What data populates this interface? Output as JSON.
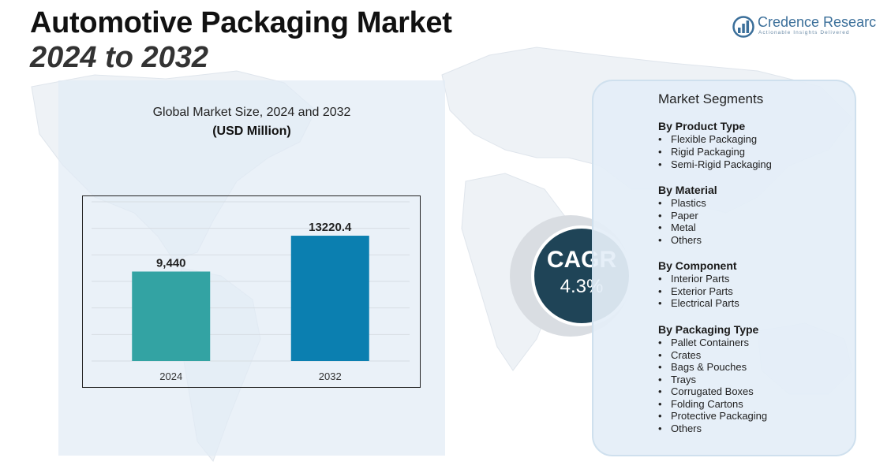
{
  "title": {
    "line1": "Automotive Packaging Market",
    "line2": "2024 to 2032"
  },
  "logo": {
    "name": "Credence Research",
    "tagline": "Actionable Insights Delivered",
    "icon": "bar-chart-logo-icon"
  },
  "chart_header": {
    "title": "Global Market Size, 2024 and 2032",
    "unit": "(USD Million)"
  },
  "chart_data": {
    "type": "bar",
    "categories": [
      "2024",
      "2032"
    ],
    "values": [
      9440,
      13220.4
    ],
    "value_labels": [
      "9,440",
      "13220.4"
    ],
    "colors": [
      "#33a3a3",
      "#0b7fb0"
    ],
    "ylim": [
      0,
      16800
    ],
    "grid": true,
    "xlabel": "",
    "ylabel": ""
  },
  "cagr": {
    "label": "CAGR",
    "value": "4.3%"
  },
  "segments": {
    "title": "Market Segments",
    "groups": [
      {
        "heading": "By Product Type",
        "items": [
          "Flexible Packaging",
          "Rigid Packaging",
          "Semi-Rigid Packaging"
        ]
      },
      {
        "heading": "By Material",
        "items": [
          "Plastics",
          "Paper",
          "Metal",
          "Others"
        ]
      },
      {
        "heading": "By Component",
        "items": [
          "Interior Parts",
          "Exterior Parts",
          "Electrical Parts"
        ]
      },
      {
        "heading": "By Packaging Type",
        "items": [
          "Pallet Containers",
          "Crates",
          "Bags & Pouches",
          "Trays",
          "Corrugated Boxes",
          "Folding Cartons",
          "Protective Packaging",
          "Others"
        ]
      }
    ]
  }
}
